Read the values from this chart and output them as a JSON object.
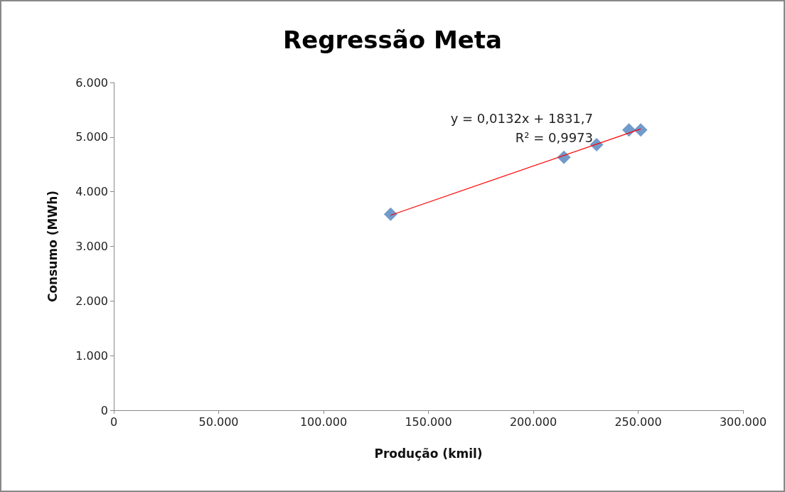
{
  "chart_data": {
    "type": "scatter",
    "title": "Regressão Meta",
    "xlabel": "Produção (kmil)",
    "ylabel": "Consumo (MWh)",
    "series": [
      {
        "color": "#4f81bd",
        "marker": "diamond",
        "x": [
          132000,
          214600,
          230200,
          245600,
          251200
        ],
        "values": [
          3590,
          4630,
          4860,
          5130,
          5130
        ]
      },
      {
        "type": "line",
        "color": "#ff0000",
        "marker": "none",
        "x": [
          132000,
          251200
        ],
        "values": [
          3570,
          5150
        ]
      }
    ],
    "xlim": [
      0,
      300000
    ],
    "xticks": [
      0,
      {
        "value": 50000,
        "label": "50.000"
      },
      {
        "value": 100000,
        "label": "100.000"
      },
      {
        "value": 150000,
        "label": "150.000"
      },
      {
        "value": 200000,
        "label": "200.000"
      },
      {
        "value": 250000,
        "label": "250.000"
      },
      {
        "value": 300000,
        "label": "300.000"
      }
    ],
    "ylim": [
      0,
      6000
    ],
    "yticks": [
      0,
      {
        "value": 1000,
        "label": "1.000"
      },
      {
        "value": 2000,
        "label": "2.000"
      },
      {
        "value": 3000,
        "label": "3.000"
      },
      {
        "value": 4000,
        "label": "4.000"
      },
      {
        "value": 5000,
        "label": "5.000"
      },
      {
        "value": 6000,
        "label": "6.000"
      }
    ],
    "annotations": [
      "y = 0,0132x + 1831,7",
      "R² = 0,9973"
    ],
    "grid": false
  }
}
